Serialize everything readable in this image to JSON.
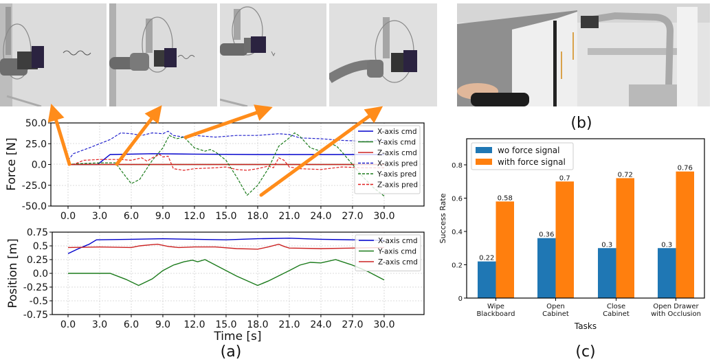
{
  "figure": {
    "captions": {
      "a": "(a)",
      "b": "(b)",
      "c": "(c)"
    },
    "photos_top": [
      {
        "name": "wipe-frame-1",
        "description": "robot arm with eraser next to scribble on whiteboard"
      },
      {
        "name": "wipe-frame-2",
        "description": "robot arm wiping scribble"
      },
      {
        "name": "wipe-frame-3",
        "description": "robot arm, scribble mostly erased"
      },
      {
        "name": "wipe-frame-4",
        "description": "robot arm extended, board clean"
      }
    ],
    "photo_b": {
      "description": "teleoperator hand on controller, robot arm opening white cabinet"
    }
  },
  "chart_data": [
    {
      "id": "force-plot",
      "type": "line",
      "title": "",
      "xlabel": "",
      "ylabel": "Force [N]",
      "xlim": [
        -2.0,
        31.5
      ],
      "ylim": [
        -50.0,
        50.0
      ],
      "xticks": [
        "0.0",
        "3.0",
        "6.0",
        "9.0",
        "12.0",
        "15.0",
        "18.0",
        "21.0",
        "24.0",
        "27.0",
        "30.0"
      ],
      "yticks": [
        "50.0",
        "25.0",
        "0.0",
        "-25.0",
        "-50.0"
      ],
      "grid": true,
      "legend_position": "upper right",
      "series": [
        {
          "name": "X-axis cmd",
          "color": "#0000cc",
          "style": "solid",
          "points": [
            [
              0,
              0
            ],
            [
              2.8,
              0
            ],
            [
              4,
              12
            ],
            [
              8,
              13
            ],
            [
              12,
              12.5
            ],
            [
              18,
              12
            ],
            [
              24,
              12
            ],
            [
              30,
              12
            ]
          ]
        },
        {
          "name": "Y-axis cmd",
          "color": "#1a7a1a",
          "style": "solid",
          "points": [
            [
              0,
              0
            ],
            [
              30,
              0
            ]
          ]
        },
        {
          "name": "Z-axis cmd",
          "color": "#cc2222",
          "style": "solid",
          "points": [
            [
              0,
              0
            ],
            [
              30,
              0
            ]
          ]
        },
        {
          "name": "X-axis pred",
          "color": "#2222cc",
          "style": "dashed",
          "points": [
            [
              0,
              5
            ],
            [
              0.5,
              13
            ],
            [
              2,
              20
            ],
            [
              4,
              30
            ],
            [
              5,
              38
            ],
            [
              6,
              37
            ],
            [
              7,
              35
            ],
            [
              8,
              38
            ],
            [
              9,
              37
            ],
            [
              9.5,
              40
            ],
            [
              10,
              35
            ],
            [
              11,
              33
            ],
            [
              12,
              35
            ],
            [
              14,
              33
            ],
            [
              16,
              35
            ],
            [
              18,
              35
            ],
            [
              20,
              37
            ],
            [
              21,
              36
            ],
            [
              22,
              32
            ],
            [
              24,
              31
            ],
            [
              26,
              29
            ],
            [
              28,
              28
            ],
            [
              30,
              29
            ]
          ]
        },
        {
          "name": "Y-axis pred",
          "color": "#1a7a1a",
          "style": "dashed",
          "points": [
            [
              0,
              0
            ],
            [
              1,
              1
            ],
            [
              3,
              2
            ],
            [
              4.5,
              2
            ],
            [
              5.5,
              -15
            ],
            [
              6,
              -23
            ],
            [
              6.8,
              -18
            ],
            [
              8,
              5
            ],
            [
              9,
              20
            ],
            [
              9.6,
              35
            ],
            [
              10.3,
              31
            ],
            [
              11,
              33
            ],
            [
              12,
              20
            ],
            [
              13,
              16
            ],
            [
              13.5,
              18
            ],
            [
              14,
              15
            ],
            [
              15,
              5
            ],
            [
              16,
              -15
            ],
            [
              17,
              -37
            ],
            [
              18,
              -25
            ],
            [
              19,
              -5
            ],
            [
              20,
              22
            ],
            [
              21,
              32
            ],
            [
              21.5,
              38
            ],
            [
              22,
              34
            ],
            [
              23,
              20
            ],
            [
              24,
              16
            ],
            [
              25,
              25
            ],
            [
              25.5,
              22
            ],
            [
              26,
              15
            ],
            [
              27,
              0
            ],
            [
              28,
              -15
            ],
            [
              29,
              -28
            ],
            [
              30,
              -38
            ]
          ]
        },
        {
          "name": "Z-axis pred",
          "color": "#e02020",
          "style": "dashed",
          "points": [
            [
              0,
              -1
            ],
            [
              0.5,
              0
            ],
            [
              1.5,
              5
            ],
            [
              3,
              6
            ],
            [
              5,
              6
            ],
            [
              6,
              5
            ],
            [
              7,
              8
            ],
            [
              7.5,
              4
            ],
            [
              8,
              8
            ],
            [
              8.7,
              12
            ],
            [
              9,
              9
            ],
            [
              9.5,
              10
            ],
            [
              10,
              -5
            ],
            [
              11,
              -7
            ],
            [
              12,
              -5
            ],
            [
              14,
              -4
            ],
            [
              15,
              -3
            ],
            [
              16,
              -6
            ],
            [
              17,
              -7
            ],
            [
              18,
              -5
            ],
            [
              19,
              -2
            ],
            [
              19.5,
              -4
            ],
            [
              20,
              8
            ],
            [
              20.5,
              5
            ],
            [
              21,
              -3
            ],
            [
              22,
              -5
            ],
            [
              24,
              -6
            ],
            [
              26,
              -3
            ],
            [
              28,
              -4
            ],
            [
              30,
              -4
            ]
          ]
        }
      ],
      "annotations": [
        {
          "type": "arrow",
          "color": "#ff8c1a",
          "from_data": [
            0.0,
            0.0
          ],
          "to_image_frame": 1
        },
        {
          "type": "arrow",
          "color": "#ff8c1a",
          "from_data": [
            4.5,
            0.0
          ],
          "to_image_frame": 2
        },
        {
          "type": "arrow",
          "color": "#ff8c1a",
          "from_data": [
            10.5,
            33.0
          ],
          "to_image_frame": 3
        },
        {
          "type": "arrow",
          "color": "#ff8c1a",
          "from_data": [
            17.0,
            -37.0
          ],
          "to_image_frame": 4
        }
      ]
    },
    {
      "id": "position-plot",
      "type": "line",
      "title": "",
      "xlabel": "Time [s]",
      "ylabel": "Position [m]",
      "xlim": [
        -2.0,
        31.5
      ],
      "ylim": [
        -0.75,
        0.75
      ],
      "xticks": [
        "0.0",
        "3.0",
        "6.0",
        "9.0",
        "12.0",
        "15.0",
        "18.0",
        "21.0",
        "24.0",
        "27.0",
        "30.0"
      ],
      "yticks": [
        "0.75",
        "0.5",
        "0.25",
        "0.0",
        "-0.25",
        "-0.5",
        "-0.75"
      ],
      "grid": true,
      "legend_position": "upper right",
      "series": [
        {
          "name": "X-axis cmd",
          "color": "#0000cc",
          "style": "solid",
          "points": [
            [
              0,
              0.36
            ],
            [
              1,
              0.45
            ],
            [
              2,
              0.53
            ],
            [
              2.7,
              0.61
            ],
            [
              6,
              0.62
            ],
            [
              9,
              0.63
            ],
            [
              12,
              0.62
            ],
            [
              15,
              0.61
            ],
            [
              18,
              0.63
            ],
            [
              21,
              0.64
            ],
            [
              24,
              0.62
            ],
            [
              27,
              0.61
            ],
            [
              30,
              0.6
            ]
          ]
        },
        {
          "name": "Y-axis cmd",
          "color": "#1a7a1a",
          "style": "solid",
          "points": [
            [
              0,
              0.0
            ],
            [
              4,
              0.0
            ],
            [
              5.5,
              -0.11
            ],
            [
              6.7,
              -0.22
            ],
            [
              8,
              -0.1
            ],
            [
              9,
              0.05
            ],
            [
              10,
              0.15
            ],
            [
              11,
              0.21
            ],
            [
              11.8,
              0.24
            ],
            [
              12.3,
              0.21
            ],
            [
              13,
              0.25
            ],
            [
              14,
              0.15
            ],
            [
              16,
              -0.05
            ],
            [
              18,
              -0.22
            ],
            [
              19,
              -0.14
            ],
            [
              21,
              0.05
            ],
            [
              22,
              0.15
            ],
            [
              23,
              0.2
            ],
            [
              24,
              0.19
            ],
            [
              25.4,
              0.25
            ],
            [
              27,
              0.15
            ],
            [
              28.5,
              0.03
            ],
            [
              30,
              -0.12
            ]
          ]
        },
        {
          "name": "Z-axis cmd",
          "color": "#cc2222",
          "style": "solid",
          "points": [
            [
              0,
              0.47
            ],
            [
              3,
              0.48
            ],
            [
              6,
              0.47
            ],
            [
              6.8,
              0.5
            ],
            [
              7.8,
              0.52
            ],
            [
              8.5,
              0.53
            ],
            [
              9.5,
              0.49
            ],
            [
              10.5,
              0.47
            ],
            [
              12,
              0.48
            ],
            [
              14,
              0.48
            ],
            [
              16,
              0.45
            ],
            [
              18,
              0.44
            ],
            [
              19,
              0.48
            ],
            [
              20,
              0.53
            ],
            [
              20.5,
              0.49
            ],
            [
              21,
              0.46
            ],
            [
              24,
              0.45
            ],
            [
              27,
              0.46
            ],
            [
              30,
              0.47
            ]
          ]
        }
      ]
    },
    {
      "id": "success-rate-bar",
      "type": "bar",
      "title": "",
      "xlabel": "Tasks",
      "ylabel": "Success Rate",
      "ylim": [
        0,
        0.92
      ],
      "yticks": [
        "0",
        "0.2",
        "0.4",
        "0.6",
        "0.8"
      ],
      "grid": false,
      "legend_position": "upper left",
      "categories": [
        "Wipe\nBlackboard",
        "Open\nCabinet",
        "Close\nCabinet",
        "Open Drawer\nwith Occlusion"
      ],
      "series": [
        {
          "name": "wo force signal",
          "color": "#1f77b4",
          "values": [
            0.22,
            0.36,
            0.3,
            0.3
          ],
          "labels": [
            "0.22",
            "0.36",
            "0.3",
            "0.3"
          ]
        },
        {
          "name": "with force signal",
          "color": "#ff7f0e",
          "values": [
            0.58,
            0.7,
            0.72,
            0.76
          ],
          "labels": [
            "0.58",
            "0.7",
            "0.72",
            "0.76"
          ]
        }
      ]
    }
  ]
}
